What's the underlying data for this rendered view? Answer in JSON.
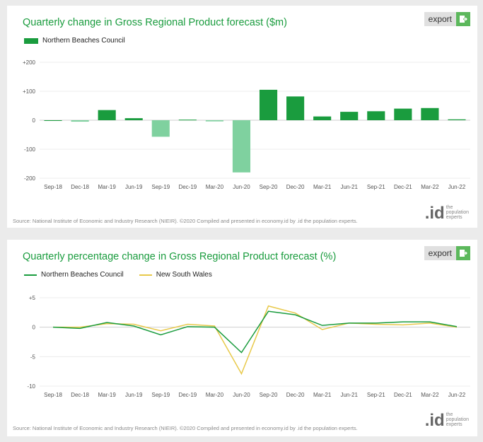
{
  "export_label": "export",
  "source_text": "Source: National Institute of Economic and Industry Research (NIEIR). ©2020 Compiled and presented in economy.id by .id the population experts.",
  "logo": {
    "mark": ".id",
    "line1": "the",
    "line2": "population",
    "line3": "experts"
  },
  "colors": {
    "green": "#1a9c3e",
    "light_green": "#7fd19f",
    "yellow": "#e8c94a"
  },
  "chart_data": [
    {
      "type": "bar",
      "title": "Quarterly change in Gross Regional Product forecast ($m)",
      "categories": [
        "Sep-18",
        "Dec-18",
        "Mar-19",
        "Jun-19",
        "Sep-19",
        "Dec-19",
        "Mar-20",
        "Jun-20",
        "Sep-20",
        "Dec-20",
        "Mar-21",
        "Jun-21",
        "Sep-21",
        "Dec-21",
        "Mar-22",
        "Jun-22"
      ],
      "series": [
        {
          "name": "Northern Beaches Council",
          "values": [
            0,
            -5,
            35,
            7,
            -57,
            2,
            -4,
            -180,
            105,
            82,
            13,
            29,
            31,
            40,
            42,
            3
          ]
        }
      ],
      "ylim": [
        -200,
        200
      ],
      "yticks": [
        200,
        100,
        0,
        -100,
        -200
      ],
      "ytick_labels": [
        "+200",
        "+100",
        "0",
        "-100",
        "-200"
      ],
      "legend_position": "top-left",
      "grid": true
    },
    {
      "type": "line",
      "title": "Quarterly percentage change in Gross Regional Product forecast (%)",
      "categories": [
        "Sep-18",
        "Dec-18",
        "Mar-19",
        "Jun-19",
        "Sep-19",
        "Dec-19",
        "Mar-20",
        "Jun-20",
        "Sep-20",
        "Dec-20",
        "Mar-21",
        "Jun-21",
        "Sep-21",
        "Dec-21",
        "Mar-22",
        "Jun-22"
      ],
      "series": [
        {
          "name": "Northern Beaches Council",
          "color": "#1a9c3e",
          "values": [
            0,
            -0.2,
            0.8,
            0.2,
            -1.3,
            0.1,
            0.0,
            -4.3,
            2.7,
            2.1,
            0.3,
            0.7,
            0.7,
            0.9,
            0.9,
            0.1
          ]
        },
        {
          "name": "New South Wales",
          "color": "#e8c94a",
          "values": [
            0,
            0.0,
            0.6,
            0.5,
            -0.6,
            0.5,
            0.2,
            -7.9,
            3.6,
            2.4,
            -0.4,
            0.7,
            0.5,
            0.4,
            0.7,
            0.0
          ]
        }
      ],
      "ylim": [
        -10,
        5
      ],
      "yticks": [
        5,
        0,
        -5,
        -10
      ],
      "ytick_labels": [
        "+5",
        "0",
        "-5",
        "-10"
      ],
      "legend_position": "top-left",
      "grid": true
    }
  ]
}
